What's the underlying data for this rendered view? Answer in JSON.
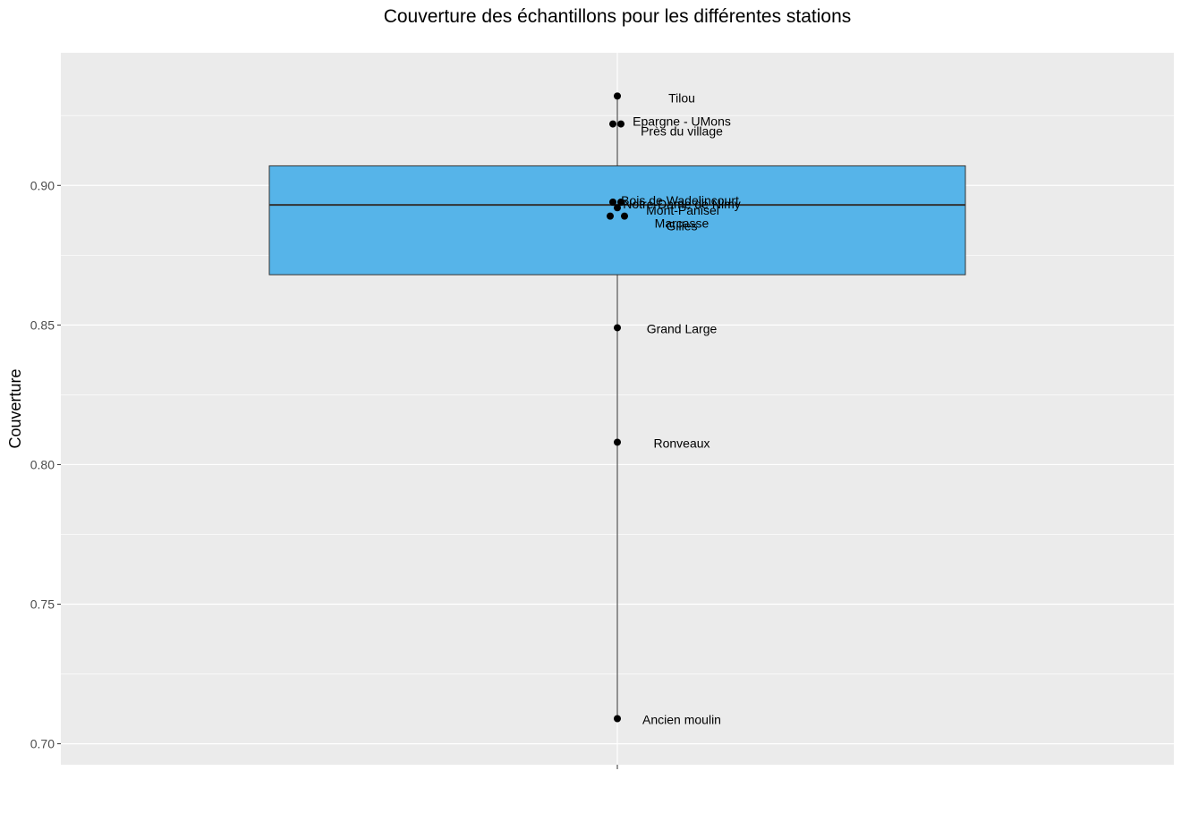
{
  "chart_data": {
    "type": "boxplot",
    "title": "Couverture des échantillons pour les différentes stations",
    "xlabel": "",
    "ylabel": "Couverture",
    "ylim": [
      0.6925,
      0.9475
    ],
    "yticks": [
      0.7,
      0.75,
      0.8,
      0.85,
      0.9
    ],
    "ytick_labels": [
      "0.70",
      "0.75",
      "0.80",
      "0.85",
      "0.90"
    ],
    "grid": true,
    "box": {
      "lower_whisker": 0.709,
      "q1": 0.868,
      "median": 0.893,
      "q3": 0.907,
      "upper_whisker": 0.932,
      "fill_color": "#56B4E9"
    },
    "points": [
      {
        "label": "Tilou",
        "value": 0.932
      },
      {
        "label": "Epargne - UMons",
        "value": 0.922
      },
      {
        "label": "Près du village",
        "value": 0.922
      },
      {
        "label": "Bois de Wadelincourt",
        "value": 0.894
      },
      {
        "label": "Notre-Dame de Nimy",
        "value": 0.894
      },
      {
        "label": "Mont-Panisel",
        "value": 0.892
      },
      {
        "label": "Marcasse",
        "value": 0.889
      },
      {
        "label": "Gilles",
        "value": 0.889
      },
      {
        "label": "Grand Large",
        "value": 0.849
      },
      {
        "label": "Ronveaux",
        "value": 0.808
      },
      {
        "label": "Ancien moulin",
        "value": 0.709
      }
    ]
  }
}
